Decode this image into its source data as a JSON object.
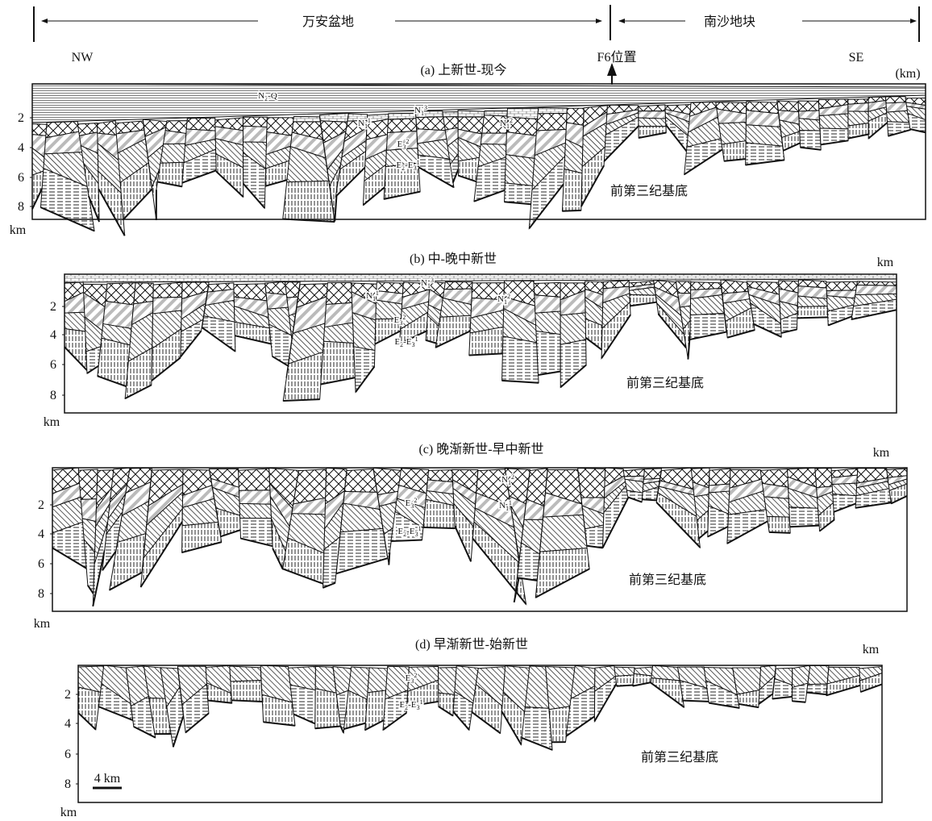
{
  "header": {
    "left_region": "万安盆地",
    "right_region": "南沙地块",
    "nw": "NW",
    "se": "SE",
    "fault": "F6位置"
  },
  "panels": [
    {
      "title": "(a) 上新世-现今",
      "unit": "(km)",
      "axis_unit": "km",
      "depth_ticks": [
        2,
        4,
        6,
        8
      ],
      "basement": "前第三纪基底",
      "labels": [
        {
          "main": "N",
          "sub": "2",
          "tail": "-Q"
        },
        {
          "main": "N",
          "sub": "1",
          "sup": "1"
        },
        {
          "main": "N",
          "sub": "1",
          "sup": "3"
        },
        {
          "main": "N",
          "sub": "1",
          "sup": "2"
        },
        {
          "main": "E",
          "sub": "3",
          "sup": "2"
        },
        {
          "main": "E",
          "sub": "2",
          "tail": "-E",
          "sub2": "3",
          "sup": "1"
        }
      ]
    },
    {
      "title": "(b) 中-晚中新世",
      "unit": "km",
      "axis_unit": "km",
      "depth_ticks": [
        2,
        4,
        6,
        8
      ],
      "basement": "前第三纪基底",
      "labels": [
        {
          "main": "N",
          "sub": "1",
          "sup": "3"
        },
        {
          "main": "N",
          "sub": "1",
          "sup": "1"
        },
        {
          "main": "N",
          "sub": "1",
          "sup": "2"
        },
        {
          "main": "E",
          "sub": "3",
          "sup": "2"
        },
        {
          "main": "E",
          "sub": "2",
          "tail": "-E",
          "sub2": "3",
          "sup": "1"
        }
      ]
    },
    {
      "title": "(c) 晚渐新世-早中新世",
      "unit": "km",
      "axis_unit": "km",
      "depth_ticks": [
        2,
        4,
        6,
        8
      ],
      "basement": "前第三纪基底",
      "labels": [
        {
          "main": "N",
          "sub": "1",
          "sup": "2"
        },
        {
          "main": "E",
          "sub": "3",
          "sup": "2"
        },
        {
          "main": "N",
          "sub": "1",
          "sup": "1"
        },
        {
          "main": "E",
          "sub": "2",
          "tail": "-E",
          "sub2": "3",
          "sup": "1"
        }
      ]
    },
    {
      "title": "(d) 早渐新世-始新世",
      "unit": "km",
      "axis_unit": "km",
      "depth_ticks": [
        2,
        4,
        6,
        8
      ],
      "basement": "前第三纪基底",
      "labels": [
        {
          "main": "E",
          "sub": "3",
          "sup": "2"
        },
        {
          "main": "E",
          "sub": "2",
          "tail": "-E",
          "sub2": "3",
          "sup": "1"
        }
      ]
    }
  ],
  "scale_bar": "4 km"
}
